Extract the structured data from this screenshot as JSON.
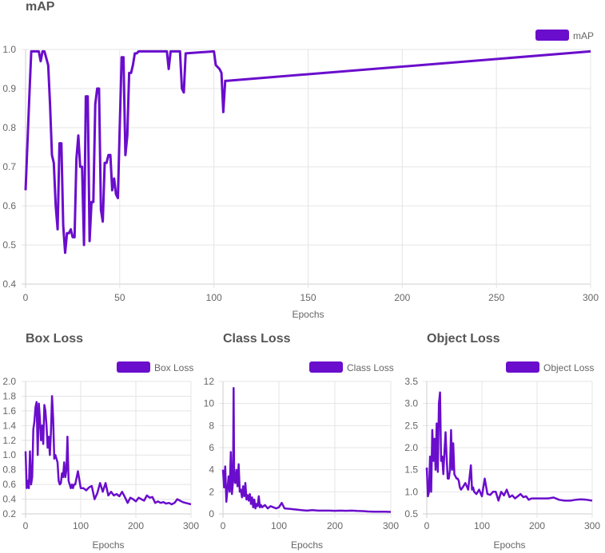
{
  "colors": {
    "series": "#6a0dcc",
    "grid": "#e4e4e4",
    "text": "#666666"
  },
  "chart_data": [
    {
      "id": "map",
      "type": "line",
      "title": "mAP",
      "xlabel": "Epochs",
      "ylabel": "",
      "legend": [
        "mAP"
      ],
      "legend_position": "top-right",
      "grid": true,
      "xlim": [
        0,
        300
      ],
      "ylim": [
        0.4,
        1.0
      ],
      "xticks": [
        "0",
        "50",
        "100",
        "150",
        "200",
        "250",
        "300"
      ],
      "yticks": [
        "0.4",
        "0.5",
        "0.6",
        "0.7",
        "0.8",
        "0.9",
        "1.0"
      ],
      "series": [
        {
          "name": "mAP",
          "x": [
            0,
            2,
            3,
            5,
            7,
            8,
            9,
            10,
            12,
            13,
            14,
            15,
            16,
            17,
            18,
            19,
            20,
            21,
            22,
            23,
            24,
            25,
            26,
            27,
            28,
            29,
            30,
            31,
            32,
            33,
            34,
            35,
            36,
            37,
            38,
            39,
            40,
            41,
            42,
            43,
            44,
            45,
            46,
            47,
            48,
            49,
            50,
            51,
            52,
            53,
            54,
            55,
            56,
            57,
            58,
            59,
            60,
            75,
            76,
            77,
            82,
            83,
            84,
            85,
            100,
            101,
            103,
            104,
            105,
            106,
            107,
            300
          ],
          "values": [
            0.64,
            0.88,
            0.995,
            0.995,
            0.995,
            0.97,
            0.995,
            0.995,
            0.96,
            0.86,
            0.73,
            0.71,
            0.6,
            0.54,
            0.76,
            0.76,
            0.55,
            0.48,
            0.53,
            0.53,
            0.54,
            0.52,
            0.52,
            0.72,
            0.78,
            0.7,
            0.7,
            0.5,
            0.88,
            0.88,
            0.51,
            0.61,
            0.61,
            0.86,
            0.9,
            0.9,
            0.59,
            0.56,
            0.71,
            0.71,
            0.73,
            0.73,
            0.64,
            0.67,
            0.63,
            0.62,
            0.8,
            0.98,
            0.98,
            0.73,
            0.78,
            0.94,
            0.94,
            0.96,
            0.99,
            0.99,
            0.995,
            0.995,
            0.95,
            0.995,
            0.995,
            0.9,
            0.89,
            0.99,
            0.995,
            0.96,
            0.95,
            0.94,
            0.84,
            0.92,
            0.92,
            0.995
          ]
        }
      ]
    },
    {
      "id": "box_loss",
      "type": "line",
      "title": "Box Loss",
      "xlabel": "Epochs",
      "legend": [
        "Box Loss"
      ],
      "legend_position": "top-right",
      "grid": true,
      "xlim": [
        0,
        300
      ],
      "ylim": [
        0.2,
        2.0
      ],
      "xticks": [
        "0",
        "100",
        "200",
        "300"
      ],
      "yticks": [
        "0.2",
        "0.4",
        "0.6",
        "0.8",
        "1.0",
        "1.2",
        "1.4",
        "1.6",
        "1.8",
        "2.0"
      ],
      "series": [
        {
          "name": "Box Loss",
          "x": [
            0,
            2,
            4,
            6,
            8,
            10,
            12,
            14,
            16,
            18,
            20,
            22,
            24,
            26,
            28,
            30,
            32,
            34,
            36,
            38,
            40,
            42,
            44,
            46,
            48,
            50,
            52,
            54,
            56,
            58,
            60,
            62,
            64,
            66,
            68,
            70,
            72,
            74,
            76,
            78,
            80,
            82,
            84,
            86,
            88,
            90,
            95,
            100,
            105,
            110,
            115,
            120,
            125,
            130,
            135,
            140,
            145,
            150,
            155,
            160,
            165,
            170,
            175,
            180,
            185,
            190,
            195,
            200,
            205,
            210,
            215,
            220,
            225,
            230,
            235,
            240,
            245,
            250,
            255,
            260,
            265,
            270,
            275,
            280,
            285,
            290,
            295,
            300
          ],
          "values": [
            1.05,
            0.55,
            0.65,
            0.55,
            1.05,
            0.6,
            0.7,
            1.35,
            1.45,
            1.65,
            1.72,
            1.0,
            1.7,
            1.5,
            1.2,
            1.4,
            1.15,
            1.68,
            1.6,
            1.4,
            1.1,
            1.25,
            1.0,
            1.3,
            1.8,
            1.5,
            0.95,
            1.0,
            0.95,
            0.9,
            0.65,
            0.6,
            0.62,
            0.75,
            0.7,
            0.9,
            0.7,
            0.8,
            1.25,
            0.65,
            0.6,
            0.55,
            0.6,
            0.55,
            0.6,
            0.6,
            0.78,
            0.55,
            0.55,
            0.52,
            0.56,
            0.58,
            0.4,
            0.48,
            0.62,
            0.5,
            0.62,
            0.45,
            0.5,
            0.45,
            0.47,
            0.44,
            0.5,
            0.43,
            0.35,
            0.42,
            0.4,
            0.37,
            0.42,
            0.4,
            0.38,
            0.45,
            0.42,
            0.43,
            0.35,
            0.37,
            0.35,
            0.36,
            0.34,
            0.35,
            0.33,
            0.35,
            0.4,
            0.38,
            0.36,
            0.35,
            0.34,
            0.33
          ]
        }
      ]
    },
    {
      "id": "class_loss",
      "type": "line",
      "title": "Class Loss",
      "xlabel": "Epochs",
      "legend": [
        "Class Loss"
      ],
      "legend_position": "top-right",
      "grid": true,
      "xlim": [
        0,
        300
      ],
      "ylim": [
        0,
        12
      ],
      "xticks": [
        "0",
        "100",
        "200",
        "300"
      ],
      "yticks": [
        "0",
        "2",
        "4",
        "6",
        "8",
        "10",
        "12"
      ],
      "series": [
        {
          "name": "Class Loss",
          "x": [
            0,
            2,
            4,
            6,
            8,
            10,
            12,
            14,
            16,
            18,
            19,
            20,
            22,
            24,
            26,
            28,
            30,
            32,
            34,
            36,
            38,
            40,
            42,
            44,
            46,
            48,
            50,
            52,
            54,
            56,
            58,
            60,
            62,
            64,
            66,
            68,
            70,
            75,
            80,
            85,
            90,
            95,
            100,
            105,
            110,
            120,
            130,
            140,
            150,
            160,
            170,
            180,
            190,
            200,
            210,
            220,
            230,
            240,
            250,
            260,
            270,
            280,
            290,
            300
          ],
          "values": [
            4.0,
            2.4,
            4.3,
            1.1,
            2.2,
            3.4,
            2.0,
            5.6,
            1.8,
            3.0,
            11.4,
            3.2,
            2.8,
            4.0,
            2.5,
            4.5,
            2.0,
            2.2,
            1.5,
            2.5,
            1.6,
            2.8,
            1.3,
            1.7,
            1.2,
            1.8,
            0.9,
            1.5,
            0.6,
            1.3,
            0.5,
            0.9,
            0.7,
            1.6,
            0.6,
            0.8,
            0.6,
            0.8,
            0.5,
            0.7,
            0.6,
            0.5,
            0.6,
            1.0,
            0.5,
            0.45,
            0.4,
            0.35,
            0.3,
            0.35,
            0.3,
            0.3,
            0.3,
            0.28,
            0.3,
            0.28,
            0.3,
            0.27,
            0.25,
            0.22,
            0.2,
            0.2,
            0.2,
            0.18
          ]
        }
      ]
    },
    {
      "id": "object_loss",
      "type": "line",
      "title": "Object Loss",
      "xlabel": "Epochs",
      "legend": [
        "Object Loss"
      ],
      "legend_position": "top-right",
      "grid": true,
      "xlim": [
        0,
        300
      ],
      "ylim": [
        0.5,
        3.5
      ],
      "xticks": [
        "0",
        "100",
        "200",
        "300"
      ],
      "yticks": [
        "0.5",
        "1.0",
        "1.5",
        "2.0",
        "2.5",
        "3.0",
        "3.5"
      ],
      "series": [
        {
          "name": "Object Loss",
          "x": [
            0,
            2,
            4,
            6,
            8,
            10,
            12,
            14,
            16,
            18,
            20,
            22,
            24,
            26,
            28,
            30,
            32,
            34,
            36,
            38,
            40,
            42,
            44,
            46,
            48,
            50,
            52,
            54,
            56,
            58,
            60,
            62,
            65,
            70,
            75,
            80,
            82,
            84,
            86,
            90,
            95,
            100,
            105,
            110,
            115,
            120,
            125,
            130,
            135,
            140,
            145,
            150,
            155,
            160,
            165,
            170,
            175,
            180,
            185,
            190,
            200,
            210,
            220,
            230,
            240,
            250,
            260,
            270,
            280,
            290,
            300
          ],
          "values": [
            1.55,
            0.9,
            1.0,
            1.8,
            1.0,
            2.4,
            1.7,
            2.2,
            1.5,
            2.55,
            1.45,
            3.0,
            3.25,
            1.7,
            1.8,
            1.4,
            1.9,
            2.35,
            1.8,
            1.3,
            1.3,
            1.5,
            2.4,
            1.5,
            2.1,
            1.4,
            1.35,
            1.3,
            1.3,
            1.25,
            1.1,
            1.05,
            1.1,
            1.2,
            1.05,
            1.6,
            1.05,
            1.1,
            1.0,
            0.95,
            1.05,
            0.9,
            1.3,
            0.95,
            0.93,
            1.0,
            1.0,
            0.8,
            1.0,
            0.92,
            1.05,
            0.88,
            0.92,
            0.85,
            0.9,
            0.95,
            0.88,
            0.9,
            0.82,
            0.85,
            0.85,
            0.85,
            0.85,
            0.87,
            0.82,
            0.8,
            0.8,
            0.82,
            0.83,
            0.82,
            0.8
          ]
        }
      ]
    }
  ]
}
